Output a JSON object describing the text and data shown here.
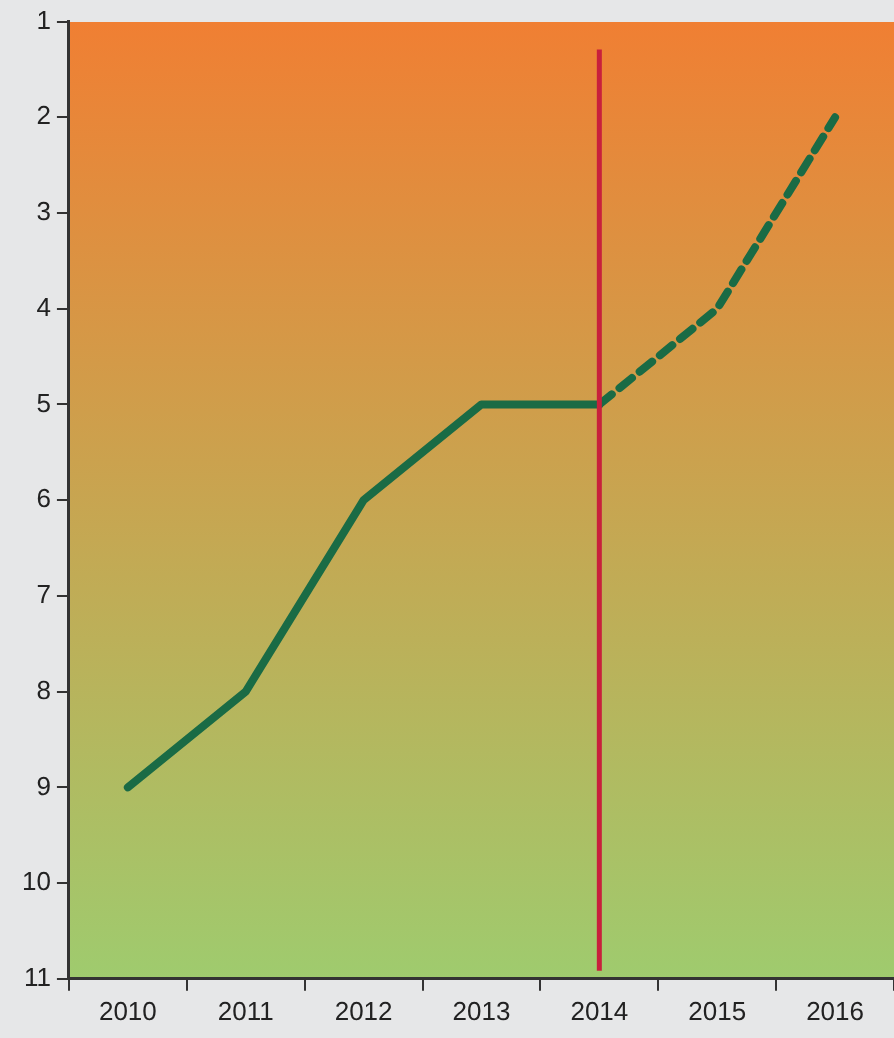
{
  "chart_data": {
    "type": "line",
    "categories": [
      "2010",
      "2011",
      "2012",
      "2013",
      "2014",
      "2015",
      "2016"
    ],
    "series": [
      {
        "color": "#1a6b45",
        "line_style": "solid",
        "values": [
          9,
          8,
          6,
          5,
          5,
          null,
          null
        ]
      },
      {
        "color": "#1a6b45",
        "line_style": "dashed",
        "values": [
          null,
          null,
          null,
          null,
          5,
          4,
          2
        ]
      }
    ],
    "ylim": [
      11,
      1
    ],
    "yticks": [
      1,
      2,
      3,
      4,
      5,
      6,
      7,
      8,
      9,
      10,
      11
    ],
    "grid": false,
    "legend": false,
    "marker": "none",
    "ref_lines": [
      {
        "axis": "x",
        "value": "2014",
        "color": "#c8203c"
      }
    ]
  }
}
